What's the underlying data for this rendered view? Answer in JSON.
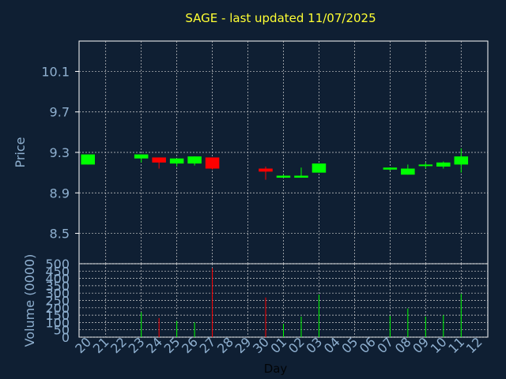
{
  "colors": {
    "background": "#0f1f33",
    "title": "#ffff33",
    "axis_text": "#8fb0d0",
    "panel_border": "#ffffff",
    "grid": "#d0d0d0",
    "up": "#00ff00",
    "down": "#ff0000"
  },
  "chart_data": [
    {
      "type": "candlestick",
      "title": "SAGE - last updated 11/07/2025",
      "xlabel": "Day",
      "ylabel": "Price",
      "ylim": [
        8.2,
        10.4
      ],
      "yticks": [
        8.5,
        8.9,
        9.3,
        9.7,
        10.1
      ],
      "grid": true,
      "categories": [
        "20",
        "21",
        "22",
        "23",
        "24",
        "25",
        "26",
        "27",
        "28",
        "29",
        "30",
        "01",
        "02",
        "03",
        "04",
        "05",
        "06",
        "07",
        "08",
        "09",
        "10",
        "11",
        "12"
      ],
      "candles": [
        {
          "day": "20",
          "open": 9.18,
          "high": 9.28,
          "low": 9.18,
          "close": 9.28
        },
        {
          "day": "23",
          "open": 9.24,
          "high": 9.28,
          "low": 9.2,
          "close": 9.28
        },
        {
          "day": "24",
          "open": 9.25,
          "high": 9.25,
          "low": 9.14,
          "close": 9.2
        },
        {
          "day": "25",
          "open": 9.19,
          "high": 9.23,
          "low": 9.16,
          "close": 9.24
        },
        {
          "day": "26",
          "open": 9.19,
          "high": 9.26,
          "low": 9.17,
          "close": 9.26
        },
        {
          "day": "27",
          "open": 9.25,
          "high": 9.25,
          "low": 9.13,
          "close": 9.14
        },
        {
          "day": "30",
          "open": 9.14,
          "high": 9.16,
          "low": 9.03,
          "close": 9.11
        },
        {
          "day": "01",
          "open": 9.05,
          "high": 9.08,
          "low": 9.05,
          "close": 9.07
        },
        {
          "day": "02",
          "open": 9.05,
          "high": 9.15,
          "low": 9.05,
          "close": 9.07
        },
        {
          "day": "03",
          "open": 9.1,
          "high": 9.19,
          "low": 9.1,
          "close": 9.19
        },
        {
          "day": "07",
          "open": 9.13,
          "high": 9.15,
          "low": 9.12,
          "close": 9.15
        },
        {
          "day": "08",
          "open": 9.08,
          "high": 9.18,
          "low": 9.08,
          "close": 9.14
        },
        {
          "day": "09",
          "open": 9.17,
          "high": 9.2,
          "low": 9.14,
          "close": 9.18
        },
        {
          "day": "10",
          "open": 9.16,
          "high": 9.21,
          "low": 9.14,
          "close": 9.2
        },
        {
          "day": "11",
          "open": 9.18,
          "high": 9.34,
          "low": 9.1,
          "close": 9.26
        }
      ]
    },
    {
      "type": "bar",
      "xlabel": "Day",
      "ylabel": "Volume (0000)",
      "ylim": [
        0,
        500
      ],
      "yticks": [
        0,
        50,
        100,
        150,
        200,
        250,
        300,
        350,
        400,
        450,
        500
      ],
      "grid": true,
      "categories": [
        "20",
        "21",
        "22",
        "23",
        "24",
        "25",
        "26",
        "27",
        "28",
        "29",
        "30",
        "01",
        "02",
        "03",
        "04",
        "05",
        "06",
        "07",
        "08",
        "09",
        "10",
        "11",
        "12"
      ],
      "bars": [
        {
          "day": "20",
          "value": 0,
          "dir": "up"
        },
        {
          "day": "23",
          "value": 170,
          "dir": "up"
        },
        {
          "day": "24",
          "value": 130,
          "dir": "down"
        },
        {
          "day": "25",
          "value": 110,
          "dir": "up"
        },
        {
          "day": "26",
          "value": 100,
          "dir": "up"
        },
        {
          "day": "27",
          "value": 470,
          "dir": "down"
        },
        {
          "day": "30",
          "value": 270,
          "dir": "down"
        },
        {
          "day": "01",
          "value": 90,
          "dir": "up"
        },
        {
          "day": "02",
          "value": 140,
          "dir": "up"
        },
        {
          "day": "03",
          "value": 290,
          "dir": "up"
        },
        {
          "day": "07",
          "value": 145,
          "dir": "up"
        },
        {
          "day": "08",
          "value": 195,
          "dir": "up"
        },
        {
          "day": "09",
          "value": 140,
          "dir": "up"
        },
        {
          "day": "10",
          "value": 150,
          "dir": "up"
        },
        {
          "day": "11",
          "value": 295,
          "dir": "up"
        }
      ]
    }
  ]
}
